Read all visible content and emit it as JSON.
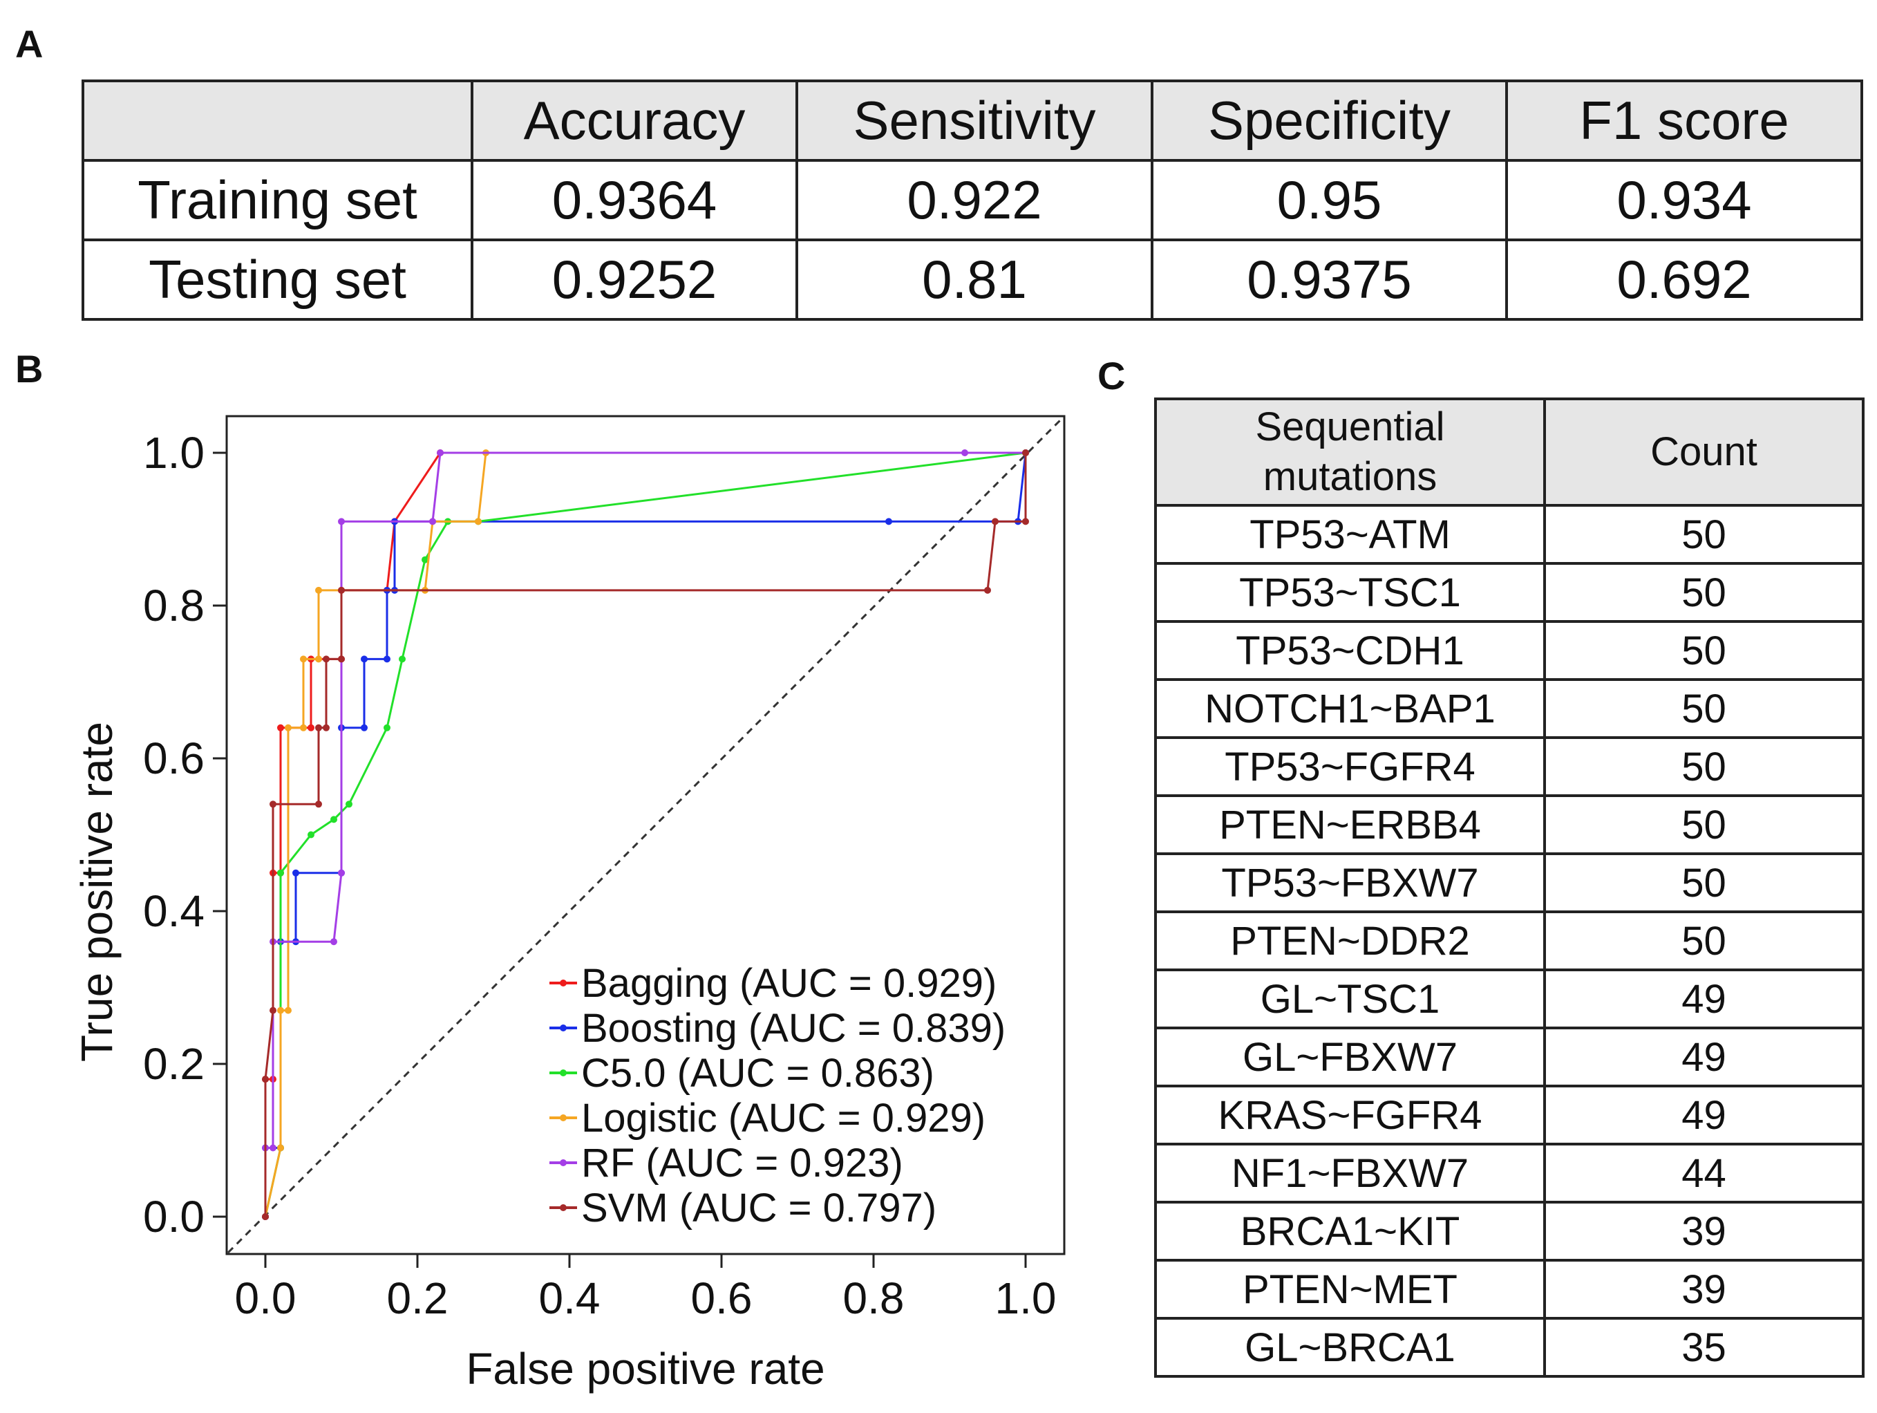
{
  "panels": {
    "a": "A",
    "b": "B",
    "c": "C"
  },
  "metrics_table": {
    "headers": [
      "",
      "Accuracy",
      "Sensitivity",
      "Specificity",
      "F1 score"
    ],
    "rows": [
      {
        "label": "Training set",
        "values": [
          "0.9364",
          "0.922",
          "0.95",
          "0.934"
        ]
      },
      {
        "label": "Testing set",
        "values": [
          "0.9252",
          "0.81",
          "0.9375",
          "0.692"
        ]
      }
    ]
  },
  "mutations_table": {
    "headers": [
      "Sequential mutations",
      "Count"
    ],
    "rows": [
      [
        "TP53~ATM",
        "50"
      ],
      [
        "TP53~TSC1",
        "50"
      ],
      [
        "TP53~CDH1",
        "50"
      ],
      [
        "NOTCH1~BAP1",
        "50"
      ],
      [
        "TP53~FGFR4",
        "50"
      ],
      [
        "PTEN~ERBB4",
        "50"
      ],
      [
        "TP53~FBXW7",
        "50"
      ],
      [
        "PTEN~DDR2",
        "50"
      ],
      [
        "GL~TSC1",
        "49"
      ],
      [
        "GL~FBXW7",
        "49"
      ],
      [
        "KRAS~FGFR4",
        "49"
      ],
      [
        "NF1~FBXW7",
        "44"
      ],
      [
        "BRCA1~KIT",
        "39"
      ],
      [
        "PTEN~MET",
        "39"
      ],
      [
        "GL~BRCA1",
        "35"
      ]
    ]
  },
  "chart_data": {
    "type": "line",
    "title": "",
    "xlabel": "False positive rate",
    "ylabel": "True positive rate",
    "xlim": [
      0.0,
      1.0
    ],
    "ylim": [
      0.0,
      1.0
    ],
    "xticks": [
      "0.0",
      "0.2",
      "0.4",
      "0.6",
      "0.8",
      "1.0"
    ],
    "yticks": [
      "0.0",
      "0.2",
      "0.4",
      "0.6",
      "0.8",
      "1.0"
    ],
    "legend_position": "bottom-right",
    "diagonal": true,
    "series": [
      {
        "name": "Bagging (AUC = 0.929)",
        "color": "#ee1c1c",
        "points": [
          [
            0,
            0
          ],
          [
            0,
            0.18
          ],
          [
            0.01,
            0.18
          ],
          [
            0.01,
            0.45
          ],
          [
            0.02,
            0.45
          ],
          [
            0.02,
            0.64
          ],
          [
            0.06,
            0.64
          ],
          [
            0.06,
            0.73
          ],
          [
            0.1,
            0.73
          ],
          [
            0.1,
            0.82
          ],
          [
            0.16,
            0.82
          ],
          [
            0.17,
            0.91
          ],
          [
            0.23,
            1.0
          ],
          [
            1.0,
            1.0
          ]
        ]
      },
      {
        "name": "Boosting (AUC = 0.839)",
        "color": "#1a2ee8",
        "points": [
          [
            0,
            0
          ],
          [
            0,
            0.09
          ],
          [
            0.02,
            0.09
          ],
          [
            0.02,
            0.36
          ],
          [
            0.04,
            0.36
          ],
          [
            0.04,
            0.45
          ],
          [
            0.1,
            0.45
          ],
          [
            0.1,
            0.64
          ],
          [
            0.13,
            0.64
          ],
          [
            0.13,
            0.73
          ],
          [
            0.16,
            0.73
          ],
          [
            0.16,
            0.82
          ],
          [
            0.17,
            0.82
          ],
          [
            0.17,
            0.91
          ],
          [
            0.82,
            0.91
          ],
          [
            0.99,
            0.91
          ],
          [
            1.0,
            1.0
          ]
        ]
      },
      {
        "name": "C5.0 (AUC = 0.863)",
        "color": "#22e02a",
        "points": [
          [
            0,
            0
          ],
          [
            0.02,
            0.09
          ],
          [
            0.02,
            0.45
          ],
          [
            0.06,
            0.5
          ],
          [
            0.09,
            0.52
          ],
          [
            0.11,
            0.54
          ],
          [
            0.16,
            0.64
          ],
          [
            0.18,
            0.73
          ],
          [
            0.21,
            0.86
          ],
          [
            0.24,
            0.91
          ],
          [
            0.28,
            0.91
          ],
          [
            1.0,
            1.0
          ]
        ]
      },
      {
        "name": "Logistic (AUC = 0.929)",
        "color": "#f5a623",
        "points": [
          [
            0,
            0
          ],
          [
            0.02,
            0.09
          ],
          [
            0.02,
            0.27
          ],
          [
            0.03,
            0.27
          ],
          [
            0.03,
            0.64
          ],
          [
            0.05,
            0.64
          ],
          [
            0.05,
            0.73
          ],
          [
            0.07,
            0.73
          ],
          [
            0.07,
            0.82
          ],
          [
            0.21,
            0.82
          ],
          [
            0.22,
            0.91
          ],
          [
            0.28,
            0.91
          ],
          [
            0.29,
            1.0
          ],
          [
            1.0,
            1.0
          ]
        ]
      },
      {
        "name": "RF (AUC = 0.923)",
        "color": "#a43ee6",
        "points": [
          [
            0,
            0
          ],
          [
            0,
            0.09
          ],
          [
            0.01,
            0.09
          ],
          [
            0.01,
            0.36
          ],
          [
            0.09,
            0.36
          ],
          [
            0.1,
            0.45
          ],
          [
            0.1,
            0.91
          ],
          [
            0.22,
            0.91
          ],
          [
            0.23,
            1.0
          ],
          [
            0.92,
            1.0
          ],
          [
            1.0,
            1.0
          ]
        ]
      },
      {
        "name": "SVM (AUC = 0.797)",
        "color": "#a52a2a",
        "points": [
          [
            0,
            0
          ],
          [
            0,
            0.18
          ],
          [
            0.01,
            0.27
          ],
          [
            0.01,
            0.54
          ],
          [
            0.07,
            0.54
          ],
          [
            0.07,
            0.64
          ],
          [
            0.08,
            0.64
          ],
          [
            0.08,
            0.73
          ],
          [
            0.1,
            0.73
          ],
          [
            0.1,
            0.82
          ],
          [
            0.95,
            0.82
          ],
          [
            0.96,
            0.91
          ],
          [
            1.0,
            0.91
          ],
          [
            1.0,
            1.0
          ]
        ]
      }
    ]
  }
}
